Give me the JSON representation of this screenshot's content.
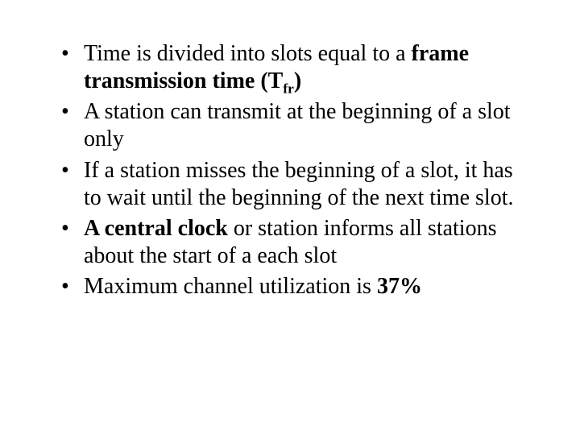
{
  "slide": {
    "background_color": "#ffffff",
    "text_color": "#000000",
    "font_family": "Times New Roman",
    "body_fontsize_pt": 28,
    "bullets": [
      {
        "pre": "Time is divided into slots equal to a ",
        "bold": "frame transmission time (T",
        "sub": "fr",
        "bold_close": ")",
        "post": ""
      },
      {
        "pre": "A station can transmit at the beginning of a slot only",
        "bold": "",
        "sub": "",
        "bold_close": "",
        "post": ""
      },
      {
        "pre": "If a station misses the beginning of a slot, it has to wait until the beginning of the next time slot.",
        "bold": "",
        "sub": "",
        "bold_close": "",
        "post": ""
      },
      {
        "pre": "",
        "bold": "A central clock",
        "sub": "",
        "bold_close": "",
        "post": " or station informs all stations about the start of a each slot"
      },
      {
        "pre": "Maximum channel utilization is ",
        "bold": "37%",
        "sub": "",
        "bold_close": "",
        "post": ""
      }
    ]
  }
}
